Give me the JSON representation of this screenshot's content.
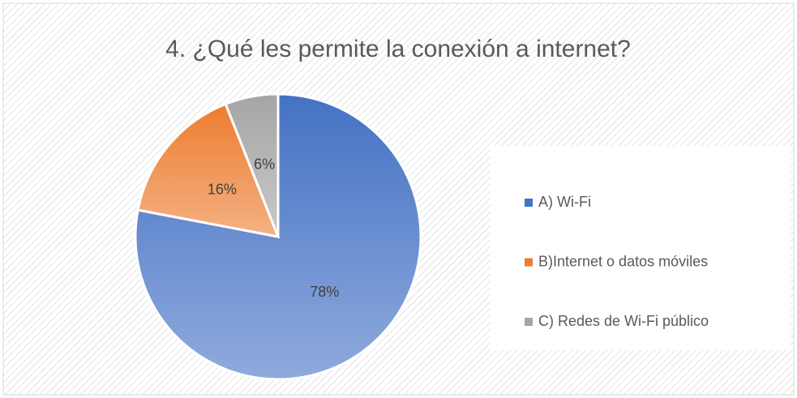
{
  "chart_data": {
    "type": "pie",
    "title": "4. ¿Qué les permite la conexión a internet?",
    "categories": [
      "A) Wi-Fi",
      "B)Internet o datos móviles",
      "C) Redes de Wi-Fi público"
    ],
    "values": [
      78,
      16,
      6
    ],
    "value_labels": [
      "78%",
      "16%",
      "6%"
    ],
    "colors": [
      "#4472c4",
      "#ed7d31",
      "#a5a5a5"
    ],
    "legend": "right"
  }
}
